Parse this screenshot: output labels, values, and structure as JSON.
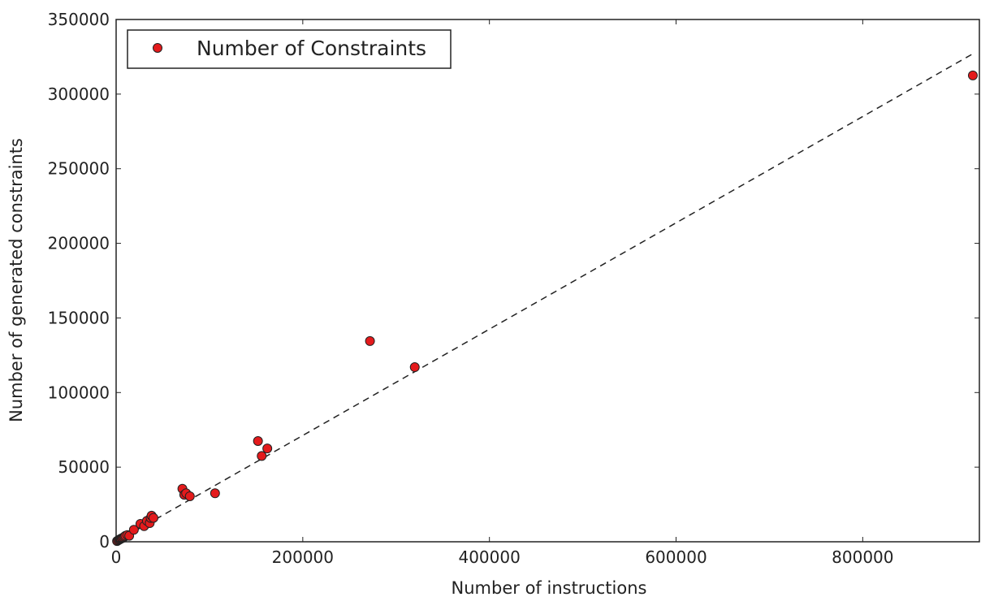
{
  "chart_data": {
    "type": "scatter",
    "title": "",
    "xlabel": "Number of instructions",
    "ylabel": "Number of generated constraints",
    "xlim": [
      0,
      925000
    ],
    "ylim": [
      0,
      350000
    ],
    "xticks": [
      0,
      200000,
      400000,
      600000,
      800000
    ],
    "yticks": [
      0,
      50000,
      100000,
      150000,
      200000,
      250000,
      300000,
      350000
    ],
    "xtick_labels": [
      "0",
      "200000",
      "400000",
      "600000",
      "800000"
    ],
    "ytick_labels": [
      "0",
      "50000",
      "100000",
      "150000",
      "200000",
      "250000",
      "300000",
      "350000"
    ],
    "grid": false,
    "legend_position": "top-left",
    "series": [
      {
        "name": "Number of Constraints",
        "color": "#e41a1c",
        "marker": "circle",
        "points": [
          {
            "x": 1000,
            "y": 500
          },
          {
            "x": 2000,
            "y": 900
          },
          {
            "x": 3000,
            "y": 1300
          },
          {
            "x": 4000,
            "y": 1600
          },
          {
            "x": 5000,
            "y": 2000
          },
          {
            "x": 6000,
            "y": 2300
          },
          {
            "x": 7000,
            "y": 2600
          },
          {
            "x": 8000,
            "y": 3000
          },
          {
            "x": 9000,
            "y": 3500
          },
          {
            "x": 10000,
            "y": 4000
          },
          {
            "x": 12000,
            "y": 4500
          },
          {
            "x": 14000,
            "y": 4000
          },
          {
            "x": 19000,
            "y": 8000
          },
          {
            "x": 26000,
            "y": 12000
          },
          {
            "x": 30000,
            "y": 10500
          },
          {
            "x": 33000,
            "y": 14000
          },
          {
            "x": 36000,
            "y": 12500
          },
          {
            "x": 37000,
            "y": 16000
          },
          {
            "x": 38000,
            "y": 17500
          },
          {
            "x": 40000,
            "y": 16000
          },
          {
            "x": 71000,
            "y": 35500
          },
          {
            "x": 73000,
            "y": 31500
          },
          {
            "x": 75000,
            "y": 32500
          },
          {
            "x": 79000,
            "y": 30500
          },
          {
            "x": 106000,
            "y": 32500
          },
          {
            "x": 152000,
            "y": 67500
          },
          {
            "x": 156000,
            "y": 57500
          },
          {
            "x": 162000,
            "y": 62500
          },
          {
            "x": 272000,
            "y": 134500
          },
          {
            "x": 320000,
            "y": 117000
          },
          {
            "x": 918000,
            "y": 312500
          }
        ]
      }
    ],
    "fit_line": {
      "style": "dashed",
      "color": "#222222",
      "points": [
        {
          "x": 0,
          "y": 0
        },
        {
          "x": 918000,
          "y": 327000
        }
      ]
    }
  }
}
